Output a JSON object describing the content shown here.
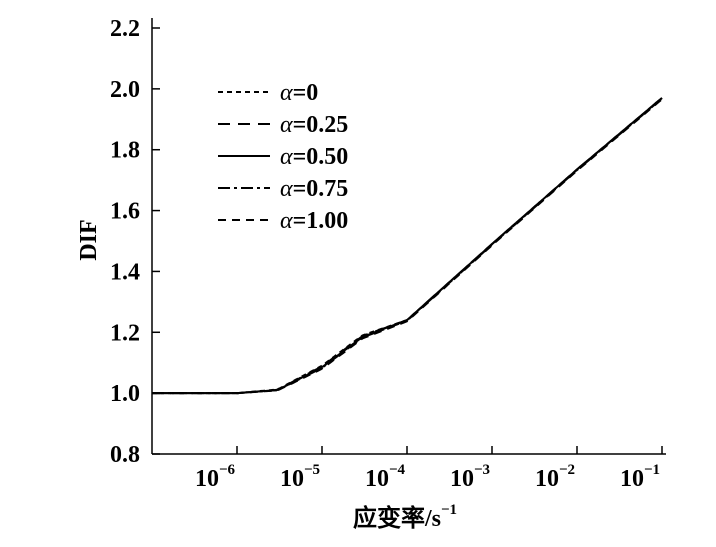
{
  "chart_data": {
    "type": "line",
    "xlabel": "应变率/s",
    "xlabel_exponent": "−1",
    "ylabel": "DIF",
    "xscale": "log",
    "xlim": [
      1e-07,
      0.1
    ],
    "ylim": [
      0.8,
      2.2
    ],
    "x_ticks": [
      {
        "value": 1e-06,
        "base": "10",
        "exp": "−6"
      },
      {
        "value": 1e-05,
        "base": "10",
        "exp": "−5"
      },
      {
        "value": 0.0001,
        "base": "10",
        "exp": "−4"
      },
      {
        "value": 0.001,
        "base": "10",
        "exp": "−3"
      },
      {
        "value": 0.01,
        "base": "10",
        "exp": "−2"
      },
      {
        "value": 0.1,
        "base": "10",
        "exp": "−1"
      }
    ],
    "y_ticks": [
      "0.8",
      "1.0",
      "1.2",
      "1.4",
      "1.6",
      "1.8",
      "2.0",
      "2.2"
    ],
    "grid": false,
    "legend_position": "top-left",
    "legend_symbol": "α",
    "series": [
      {
        "name": "=0",
        "dash": "5,4",
        "x": [
          1e-07,
          1e-06,
          3e-06,
          1e-05,
          3e-05,
          0.0001,
          0.001,
          0.01,
          0.1
        ],
        "y": [
          1.0,
          1.0,
          1.012,
          1.09,
          1.19,
          1.24,
          1.49,
          1.735,
          1.97
        ]
      },
      {
        "name": "=0.25",
        "dash": "12,8",
        "x": [
          1e-07,
          1e-06,
          3e-06,
          1e-05,
          3e-05,
          0.0001,
          0.001,
          0.01,
          0.1
        ],
        "y": [
          1.0,
          1.0,
          1.011,
          1.088,
          1.188,
          1.24,
          1.49,
          1.735,
          1.97
        ]
      },
      {
        "name": "=0.50",
        "dash": "",
        "x": [
          1e-07,
          1e-06,
          3e-06,
          1e-05,
          3e-05,
          0.0001,
          0.001,
          0.01,
          0.1
        ],
        "y": [
          1.0,
          1.0,
          1.01,
          1.085,
          1.185,
          1.24,
          1.49,
          1.735,
          1.97
        ]
      },
      {
        "name": "=0.75",
        "dash": "12,4,3,4",
        "x": [
          1e-07,
          1e-06,
          3e-06,
          1e-05,
          3e-05,
          0.0001,
          0.001,
          0.01,
          0.1
        ],
        "y": [
          1.0,
          1.0,
          1.01,
          1.083,
          1.183,
          1.238,
          1.488,
          1.733,
          1.968
        ]
      },
      {
        "name": "=1.00",
        "dash": "8,6",
        "x": [
          1e-07,
          1e-06,
          3e-06,
          1e-05,
          3e-05,
          0.0001,
          0.001,
          0.01,
          0.1
        ],
        "y": [
          1.0,
          1.0,
          1.009,
          1.08,
          1.18,
          1.236,
          1.486,
          1.731,
          1.966
        ]
      }
    ]
  }
}
